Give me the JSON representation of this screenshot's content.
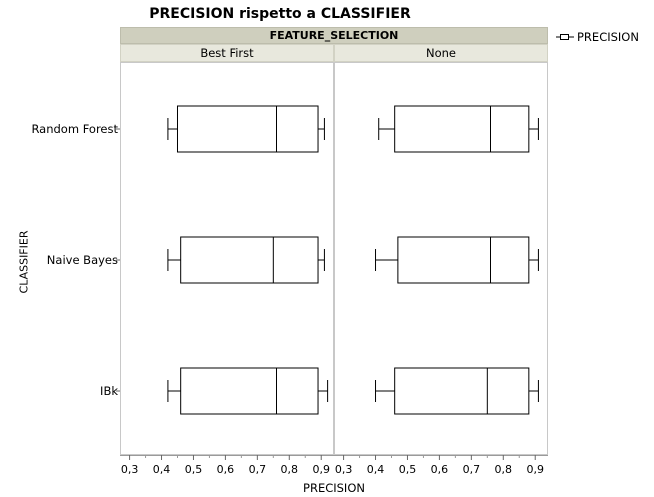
{
  "chart_data": {
    "type": "box",
    "title": "PRECISION rispetto a CLASSIFIER",
    "legend": {
      "label": "PRECISION",
      "placement": "top-right"
    },
    "group_header": "FEATURE_SELECTION",
    "panels": [
      "Best First",
      "None"
    ],
    "categories": [
      "Random Forest",
      "Naive Bayes",
      "IBk"
    ],
    "ylabel": "CLASSIFIER",
    "xlabel": "PRECISION",
    "xlim": [
      0.27,
      0.94
    ],
    "xticks": [
      "0,3",
      "0,4",
      "0,5",
      "0,6",
      "0,7",
      "0,8",
      "0,9"
    ],
    "xtick_values": [
      0.3,
      0.4,
      0.5,
      0.6,
      0.7,
      0.8,
      0.9
    ],
    "grid": false,
    "series": [
      {
        "panel": "Best First",
        "boxes": [
          {
            "category": "Random Forest",
            "min": 0.42,
            "q1": 0.45,
            "median": 0.76,
            "q3": 0.89,
            "max": 0.91
          },
          {
            "category": "Naive Bayes",
            "min": 0.42,
            "q1": 0.46,
            "median": 0.75,
            "q3": 0.89,
            "max": 0.91
          },
          {
            "category": "IBk",
            "min": 0.42,
            "q1": 0.46,
            "median": 0.76,
            "q3": 0.89,
            "max": 0.92
          }
        ]
      },
      {
        "panel": "None",
        "boxes": [
          {
            "category": "Random Forest",
            "min": 0.41,
            "q1": 0.46,
            "median": 0.76,
            "q3": 0.88,
            "max": 0.91
          },
          {
            "category": "Naive Bayes",
            "min": 0.4,
            "q1": 0.47,
            "median": 0.76,
            "q3": 0.88,
            "max": 0.91
          },
          {
            "category": "IBk",
            "min": 0.4,
            "q1": 0.46,
            "median": 0.75,
            "q3": 0.88,
            "max": 0.91
          }
        ]
      }
    ]
  }
}
